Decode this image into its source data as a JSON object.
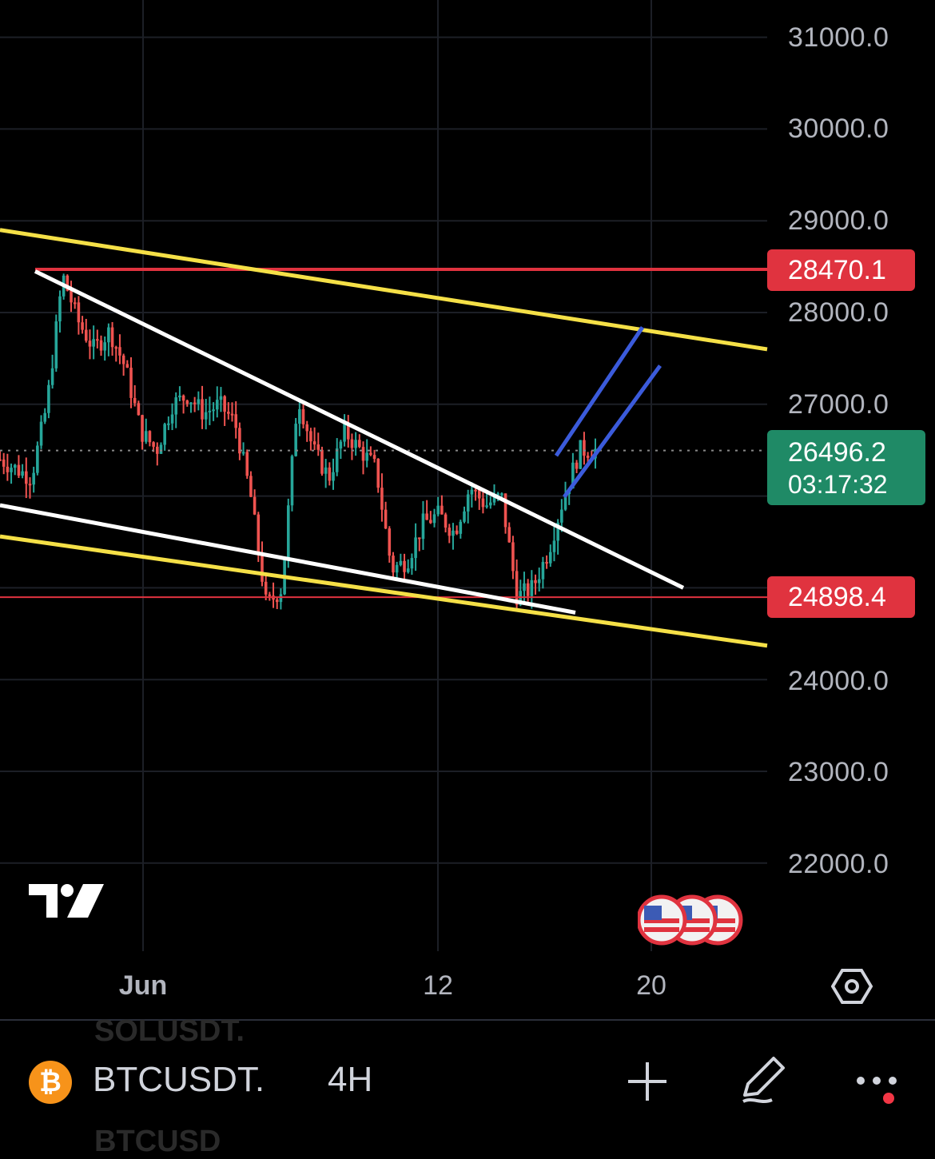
{
  "chart_data": {
    "type": "candlestick",
    "symbol": "BTCUSDT.",
    "interval": "4H",
    "y_ticks": [
      "31000.0",
      "30000.0",
      "29000.0",
      "28000.0",
      "27000.0",
      "24000.0",
      "23000.0",
      "22000.0"
    ],
    "x_ticks": [
      "Jun",
      "12",
      "20"
    ],
    "horizontal_lines": [
      {
        "value": 28470.1,
        "label": "28470.1",
        "color": "#e0333f"
      },
      {
        "value": 24898.4,
        "label": "24898.4",
        "color": "#e0333f"
      }
    ],
    "current_price": {
      "value": "26496.2",
      "countdown": "03:17:32",
      "color": "#1f8a66"
    },
    "approx_close_path": [
      26400,
      26300,
      26200,
      27000,
      28400,
      27900,
      27600,
      27800,
      27400,
      26700,
      26500,
      27000,
      27100,
      26900,
      27000,
      26800,
      26000,
      24800,
      25000,
      27100,
      26500,
      26200,
      26700,
      26500,
      26300,
      25200,
      25300,
      25700,
      25800,
      25600,
      26100,
      25900,
      26000,
      24900,
      25000,
      25400,
      26000,
      26500,
      26500
    ]
  },
  "colors": {
    "up": "#26a69a",
    "down": "#ef5350",
    "yellow": "#f5e047",
    "white": "#ffffff",
    "blue": "#3b5bdb"
  },
  "icons": {
    "logo": "tradingview-logo",
    "flags": "us-flag-icon",
    "settings": "gear-icon",
    "add": "plus-icon",
    "draw": "pen-icon",
    "more": "more-dots-icon",
    "coin": "bitcoin-icon"
  },
  "bottom": {
    "coin_glyph": "₿",
    "symbol": "BTCUSDT.",
    "interval": "4H",
    "ghost_top": "SOLUSDT.",
    "ghost_bottom": "BTCUSD"
  }
}
